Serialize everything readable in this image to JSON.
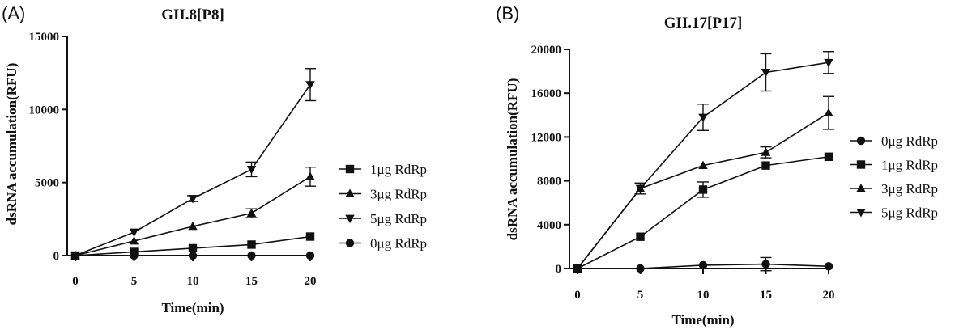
{
  "chart_data": [
    {
      "type": "line",
      "panel_label": "(A)",
      "title": "GII.8[P8]",
      "xlabel": "Time(min)",
      "ylabel": "dsRNA accumulation(RFU)",
      "x": [
        0,
        5,
        10,
        15,
        20
      ],
      "xticks": [
        "0",
        "5",
        "10",
        "15",
        "20"
      ],
      "ylim": [
        0,
        15000
      ],
      "yticks": [
        0,
        5000,
        10000,
        15000
      ],
      "ytick_labels": [
        "0",
        "5000",
        "10000",
        "15000"
      ],
      "legend_position": "right",
      "series": [
        {
          "name": "1μg RdRp",
          "marker": "square",
          "values": [
            0,
            250,
            500,
            750,
            1300
          ],
          "errors": [
            0,
            0,
            0,
            0,
            0
          ]
        },
        {
          "name": "3μg RdRp",
          "marker": "triangle-up",
          "values": [
            0,
            1000,
            2000,
            2900,
            5400
          ],
          "errors": [
            0,
            0,
            0,
            300,
            650
          ]
        },
        {
          "name": "5μg RdRp",
          "marker": "triangle-down",
          "values": [
            0,
            1600,
            3900,
            5900,
            11700
          ],
          "errors": [
            0,
            0,
            200,
            500,
            1100
          ]
        },
        {
          "name": "0μg RdRp",
          "marker": "circle",
          "values": [
            0,
            0,
            0,
            0,
            0
          ],
          "errors": [
            0,
            0,
            0,
            0,
            0
          ]
        }
      ]
    },
    {
      "type": "line",
      "panel_label": "(B)",
      "title": "GII.17[P17]",
      "xlabel": "Time(min)",
      "ylabel": "dsRNA accumulation(RFU)",
      "x": [
        0,
        5,
        10,
        15,
        20
      ],
      "xticks": [
        "0",
        "5",
        "10",
        "15",
        "20"
      ],
      "ylim": [
        0,
        20000
      ],
      "yticks": [
        0,
        4000,
        8000,
        12000,
        16000,
        20000
      ],
      "ytick_labels": [
        "0",
        "4000",
        "8000",
        "12000",
        "16000",
        "20000"
      ],
      "legend_position": "right",
      "series": [
        {
          "name": "0μg RdRp",
          "marker": "circle",
          "values": [
            0,
            0,
            300,
            400,
            200
          ],
          "errors": [
            0,
            0,
            0,
            600,
            0
          ]
        },
        {
          "name": "1μg RdRp",
          "marker": "square",
          "values": [
            0,
            2900,
            7200,
            9400,
            10200
          ],
          "errors": [
            0,
            0,
            700,
            0,
            0
          ]
        },
        {
          "name": "3μg RdRp",
          "marker": "triangle-up",
          "values": [
            0,
            7300,
            9400,
            10600,
            14200
          ],
          "errors": [
            0,
            0,
            0,
            500,
            1500
          ]
        },
        {
          "name": "5μg RdRp",
          "marker": "triangle-down",
          "values": [
            0,
            7300,
            13800,
            17900,
            18800
          ],
          "errors": [
            0,
            500,
            1200,
            1700,
            1000
          ]
        }
      ]
    }
  ]
}
